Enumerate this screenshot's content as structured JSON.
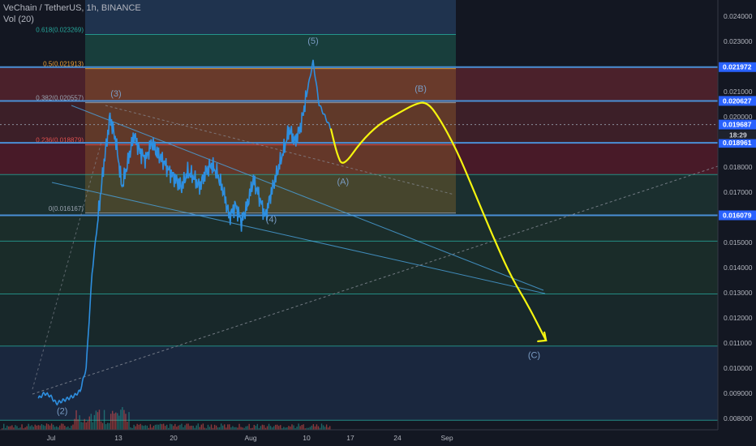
{
  "header": {
    "title": "VeChain / TetherUS, 1h, BINANCE",
    "volume_label": "Vol (20)"
  },
  "colors": {
    "background": "#131722",
    "price_line": "#2e8fe0",
    "forecast": "#f5f50f",
    "fib_line": "#26a69a",
    "level_line": "#4a8fd6",
    "wave_label": "#7a9cc4",
    "text": "#b2b5be"
  },
  "chart_data": {
    "type": "line",
    "title": "VeChain / TetherUS, 1h, BINANCE",
    "xlabel": "",
    "ylabel": "",
    "x_ticks": [
      "Jul",
      "13",
      "20",
      "Aug",
      "10",
      "17",
      "24",
      "Sep"
    ],
    "y_ticks": [
      0.024,
      0.023,
      0.021,
      0.02,
      0.018,
      0.017,
      0.015,
      0.014,
      0.013,
      0.012,
      0.011,
      0.01,
      0.009,
      0.008
    ],
    "ylim": [
      0.00755,
      0.02464
    ],
    "grid": false,
    "legend": "none",
    "series": [
      {
        "x": [
          "2020-06-25",
          "2020-06-26",
          "2020-06-27",
          "2020-06-28",
          "2020-06-29",
          "2020-06-30",
          "2020-07-01",
          "2020-07-02",
          "2020-07-03",
          "2020-07-04",
          "2020-07-05",
          "2020-07-06",
          "2020-07-07",
          "2020-07-08",
          "2020-07-09",
          "2020-07-10",
          "2020-07-11",
          "2020-07-12",
          "2020-07-13",
          "2020-07-14",
          "2020-07-15",
          "2020-07-16",
          "2020-07-17",
          "2020-07-18",
          "2020-07-19",
          "2020-07-20",
          "2020-07-21",
          "2020-07-22",
          "2020-07-23",
          "2020-07-24",
          "2020-07-25",
          "2020-07-26",
          "2020-07-27",
          "2020-07-28",
          "2020-07-29",
          "2020-07-30",
          "2020-07-31",
          "2020-08-01",
          "2020-08-02",
          "2020-08-03",
          "2020-08-04",
          "2020-08-05",
          "2020-08-06",
          "2020-08-07",
          "2020-08-08",
          "2020-08-09",
          "2020-08-10",
          "2020-08-11",
          "2020-08-12",
          "2020-08-13"
        ],
        "values": [
          0.0088,
          0.009,
          0.0089,
          0.0086,
          0.0087,
          0.0088,
          0.0089,
          0.0091,
          0.01,
          0.0138,
          0.016,
          0.0182,
          0.02,
          0.019,
          0.0172,
          0.0182,
          0.0193,
          0.0186,
          0.0183,
          0.019,
          0.0185,
          0.0182,
          0.0178,
          0.0175,
          0.0172,
          0.0178,
          0.0176,
          0.0172,
          0.0178,
          0.0181,
          0.0177,
          0.017,
          0.016,
          0.0165,
          0.0158,
          0.0165,
          0.0175,
          0.0168,
          0.016,
          0.017,
          0.0178,
          0.0186,
          0.0195,
          0.019,
          0.0197,
          0.021,
          0.0222,
          0.0205,
          0.02,
          0.0195
        ]
      },
      {
        "x": [
          "2020-08-13",
          "2020-08-14",
          "2020-08-15",
          "2020-08-18",
          "2020-08-21",
          "2020-08-24",
          "2020-08-27",
          "2020-08-29",
          "2020-08-31",
          "2020-09-03",
          "2020-09-06",
          "2020-09-09",
          "2020-09-12",
          "2020-09-15",
          "2020-09-18"
        ],
        "values": [
          0.0195,
          0.0185,
          0.018,
          0.019,
          0.0197,
          0.0201,
          0.0205,
          0.0206,
          0.02,
          0.0187,
          0.017,
          0.0153,
          0.0137,
          0.0125,
          0.0111
        ]
      }
    ],
    "fibonacci": [
      {
        "ratio": "0.618",
        "price": "0.023269",
        "label": "0.618(0.023269)"
      },
      {
        "ratio": "0.5",
        "price": "0.021913",
        "label": "0.5(0.021913)"
      },
      {
        "ratio": "0.382",
        "price": "0.020557",
        "label": "0.382(0.020557)"
      },
      {
        "ratio": "0.236",
        "price": "0.018879",
        "label": "0.236(0.018879)"
      },
      {
        "ratio": "0",
        "price": "0.016167",
        "label": "0(0.016167)"
      }
    ],
    "horizontal_levels": [
      {
        "value": 0.021972,
        "label": "0.021972"
      },
      {
        "value": 0.020627,
        "label": "0.020627"
      },
      {
        "value": 0.018961,
        "label": "0.018961"
      },
      {
        "value": 0.016079,
        "label": "0.016079"
      }
    ],
    "plain_levels": [
      0.0177,
      0.01505,
      0.01295,
      0.01088,
      0.00793
    ],
    "current_price": {
      "value": 0.019687,
      "label": "0.019687",
      "countdown": "18:29"
    },
    "wave_labels": [
      {
        "text": "(2)",
        "x": "2020-06-29",
        "y": 0.00818
      },
      {
        "text": "(3)",
        "x": "2020-07-08",
        "y": 0.0208
      },
      {
        "text": "(4)",
        "x": "2020-08-03",
        "y": 0.0158
      },
      {
        "text": "(5)",
        "x": "2020-08-10",
        "y": 0.0229
      },
      {
        "text": "(A)",
        "x": "2020-08-15",
        "y": 0.0173
      },
      {
        "text": "(B)",
        "x": "2020-08-28",
        "y": 0.021
      },
      {
        "text": "(C)",
        "x": "2020-09-16",
        "y": 0.0104
      }
    ]
  }
}
